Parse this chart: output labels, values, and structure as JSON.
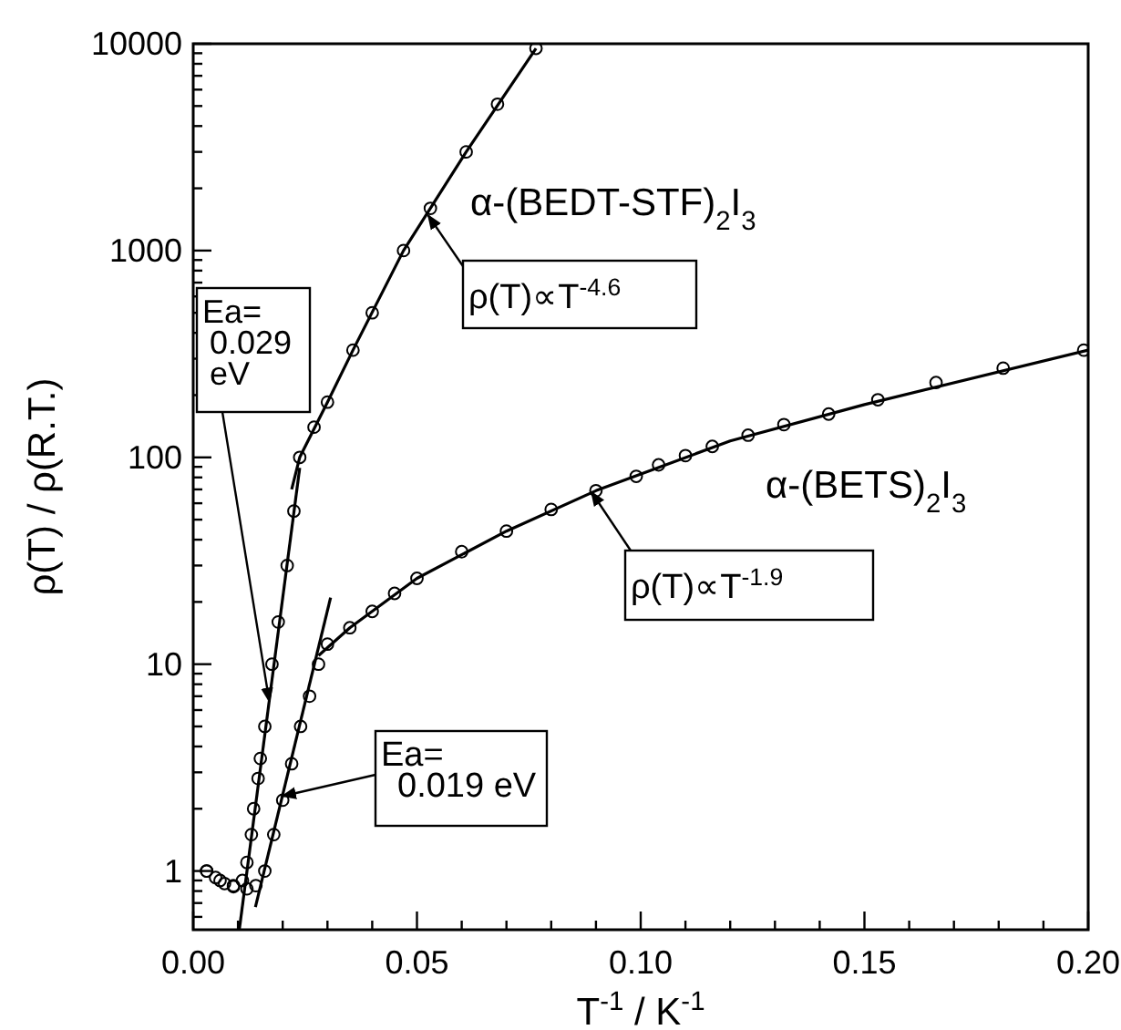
{
  "chart_data": {
    "type": "scatter",
    "xlabel": "T$^{-1}$ / K$^{-1}$",
    "ylabel": "ρ(T) / ρ(R.T.)",
    "log": "y",
    "xlim": [
      0,
      0.2
    ],
    "ylim": [
      0.52,
      10000
    ],
    "xticks": [
      {
        "value": 0,
        "label": "0.00"
      },
      {
        "value": 0.01,
        "label": null
      },
      {
        "value": 0.02,
        "label": null
      },
      {
        "value": 0.03,
        "label": null
      },
      {
        "value": 0.04,
        "label": null
      },
      {
        "value": 0.05,
        "label": "0.05"
      },
      {
        "value": 0.06,
        "label": null
      },
      {
        "value": 0.07,
        "label": null
      },
      {
        "value": 0.08,
        "label": null
      },
      {
        "value": 0.09,
        "label": null
      },
      {
        "value": 0.1,
        "label": "0.10"
      },
      {
        "value": 0.11,
        "label": null
      },
      {
        "value": 0.12,
        "label": null
      },
      {
        "value": 0.13,
        "label": null
      },
      {
        "value": 0.14,
        "label": null
      },
      {
        "value": 0.15,
        "label": "0.15"
      },
      {
        "value": 0.16,
        "label": null
      },
      {
        "value": 0.17,
        "label": null
      },
      {
        "value": 0.18,
        "label": null
      },
      {
        "value": 0.19,
        "label": null
      },
      {
        "value": 0.2,
        "label": "0.20"
      }
    ],
    "yticks": [
      {
        "value": 0.6,
        "label": null
      },
      {
        "value": 0.7,
        "label": null
      },
      {
        "value": 0.8,
        "label": null
      },
      {
        "value": 0.9,
        "label": null
      },
      1,
      {
        "value": 2,
        "label": null
      },
      {
        "value": 3,
        "label": null
      },
      {
        "value": 4,
        "label": null
      },
      {
        "value": 5,
        "label": null
      },
      {
        "value": 6,
        "label": null
      },
      {
        "value": 7,
        "label": null
      },
      {
        "value": 8,
        "label": null
      },
      {
        "value": 9,
        "label": null
      },
      10,
      {
        "value": 20,
        "label": null
      },
      {
        "value": 30,
        "label": null
      },
      {
        "value": 40,
        "label": null
      },
      {
        "value": 50,
        "label": null
      },
      {
        "value": 60,
        "label": null
      },
      {
        "value": 70,
        "label": null
      },
      {
        "value": 80,
        "label": null
      },
      {
        "value": 90,
        "label": null
      },
      100,
      {
        "value": 200,
        "label": null
      },
      {
        "value": 300,
        "label": null
      },
      {
        "value": 400,
        "label": null
      },
      {
        "value": 500,
        "label": null
      },
      {
        "value": 600,
        "label": null
      },
      {
        "value": 700,
        "label": null
      },
      {
        "value": 800,
        "label": null
      },
      {
        "value": 900,
        "label": null
      },
      1000,
      {
        "value": 2000,
        "label": null
      },
      {
        "value": 3000,
        "label": null
      },
      {
        "value": 4000,
        "label": null
      },
      {
        "value": 5000,
        "label": null
      },
      {
        "value": 6000,
        "label": null
      },
      {
        "value": 7000,
        "label": null
      },
      {
        "value": 8000,
        "label": null
      },
      {
        "value": 9000,
        "label": null
      },
      10000
    ],
    "series": [
      {
        "type": "line",
        "color": "#000000",
        "x": [
          0.022,
          0.0238,
          0.03,
          0.0357,
          0.047,
          0.061,
          0.0766
        ],
        "values": [
          70,
          100,
          185,
          330,
          1000,
          3000,
          9500
        ]
      },
      {
        "type": "line",
        "color": "#000000",
        "x": [
          0.028,
          0.035,
          0.05,
          0.07,
          0.09,
          0.12,
          0.15,
          0.2
        ],
        "values": [
          11,
          15,
          26,
          44,
          69,
          120,
          180,
          330
        ]
      },
      {
        "type": "line",
        "color": "#000000",
        "x": [
          0.0103,
          0.0238
        ],
        "values": [
          0.52,
          89
        ]
      },
      {
        "type": "line",
        "color": "#000000",
        "x": [
          0.0139,
          0.0307
        ],
        "values": [
          0.67,
          21
        ]
      },
      {
        "name": "α-(BEDT-STF)$_{2}$I$_{3}$",
        "color": "#000000",
        "marker": "circle",
        "x": [
          0.003,
          0.005,
          0.007,
          0.009,
          0.011,
          0.012,
          0.013,
          0.0135,
          0.0145,
          0.015,
          0.016,
          0.0176,
          0.019,
          0.021,
          0.0225,
          0.0238,
          0.027,
          0.03,
          0.0357,
          0.04,
          0.047,
          0.053,
          0.061,
          0.068,
          0.0766
        ],
        "values": [
          1.0,
          0.93,
          0.87,
          0.85,
          0.9,
          1.1,
          1.5,
          2,
          2.8,
          3.5,
          5,
          10,
          16,
          30,
          55,
          100,
          140,
          185,
          330,
          500,
          1000,
          1600,
          3000,
          5100,
          9500
        ]
      },
      {
        "name": "α-(BETS)$_{2}$I$_{3}$",
        "color": "#000000",
        "marker": "circle",
        "x": [
          0.003,
          0.006,
          0.009,
          0.012,
          0.014,
          0.016,
          0.018,
          0.02,
          0.022,
          0.024,
          0.026,
          0.028,
          0.03,
          0.035,
          0.04,
          0.045,
          0.05,
          0.06,
          0.07,
          0.08,
          0.09,
          0.099,
          0.104,
          0.11,
          0.116,
          0.124,
          0.132,
          0.142,
          0.153,
          0.166,
          0.181,
          0.199
        ],
        "values": [
          1.0,
          0.9,
          0.84,
          0.82,
          0.85,
          1.0,
          1.5,
          2.2,
          3.3,
          5,
          7,
          10,
          12.5,
          15,
          18,
          22,
          26,
          35,
          44,
          56,
          69,
          81,
          92,
          102,
          113,
          128,
          144,
          162,
          190,
          230,
          270,
          330
        ]
      }
    ],
    "annotations": [
      {
        "text": "ρ(T)∝T$^{-4.6}$",
        "x": 0.0525,
        "y": 1480
      },
      {
        "text": "ρ(T)∝T$^{-1.9}$",
        "x": 0.089,
        "y": 68
      },
      {
        "text": "Ea=\n0.029\neV",
        "x": 0.017,
        "y": 6.6
      },
      {
        "text": "Ea=\n0.019 eV",
        "x": 0.0199,
        "y": 2.3
      }
    ]
  }
}
